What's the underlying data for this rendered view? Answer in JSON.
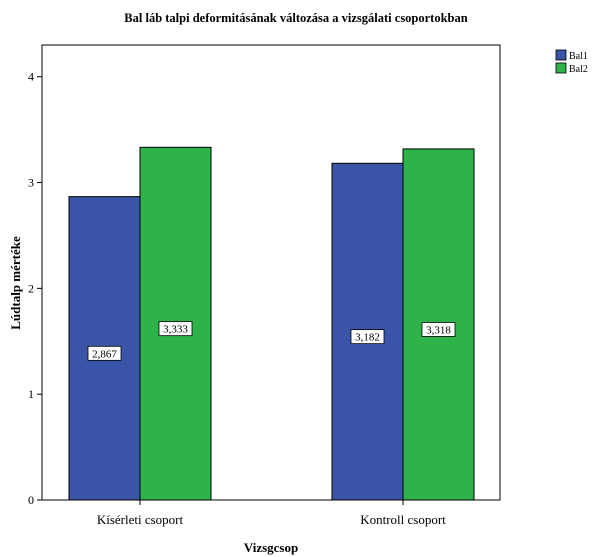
{
  "chart_data": {
    "type": "bar",
    "title": "Bal láb talpi deformitásának változása a vizsgálati csoportokban",
    "xlabel": "Vizsgcsop",
    "ylabel": "Lúdtalp mértéke",
    "categories": [
      "Kísérleti csoport",
      "Kontroll csoport"
    ],
    "series": [
      {
        "name": "Bal1",
        "color": "#3a55a8",
        "values": [
          2.867,
          3.182
        ],
        "labels": [
          "2,867",
          "3,182"
        ]
      },
      {
        "name": "Bal2",
        "color": "#2db34a",
        "values": [
          3.333,
          3.318
        ],
        "labels": [
          "3,333",
          "3,318"
        ]
      }
    ],
    "ylim": [
      0,
      4.3
    ],
    "yticks": [
      "0",
      "1",
      "2",
      "3",
      "4"
    ],
    "grid": false,
    "legend_position": "top-right"
  }
}
